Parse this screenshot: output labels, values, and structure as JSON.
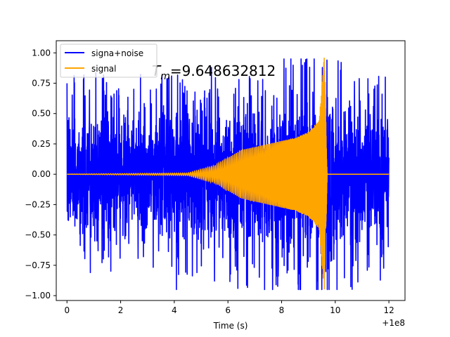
{
  "chart_data": {
    "type": "line",
    "title": "",
    "xlabel": "Time (s)",
    "ylabel": "",
    "x_offset_label": "+1e8",
    "xlim": [
      -0.4,
      12.6
    ],
    "ylim": [
      -1.04,
      1.1
    ],
    "xticks": [
      0,
      2,
      4,
      6,
      8,
      10,
      12
    ],
    "xtick_labels": [
      "0",
      "2",
      "4",
      "6",
      "8",
      "10",
      "12"
    ],
    "yticks": [
      -1.0,
      -0.75,
      -0.5,
      -0.25,
      0.0,
      0.25,
      0.5,
      0.75,
      1.0
    ],
    "ytick_labels": [
      "−1.00",
      "−0.75",
      "−0.50",
      "−0.25",
      "0.00",
      "0.25",
      "0.50",
      "0.75",
      "1.00"
    ],
    "grid": false,
    "legend_position": "top-left",
    "annotation": {
      "prefix": "T",
      "subscript": "m",
      "value": "=9.648632812"
    },
    "series": [
      {
        "name": "signa+noise",
        "color": "#0000ff",
        "x_range": [
          0,
          12
        ],
        "envelope_upper": [
          0.6,
          0.6,
          0.6,
          0.6,
          0.6,
          0.62,
          0.65,
          0.7,
          0.75,
          0.78,
          0.8,
          0.62,
          0.6
        ],
        "envelope_lower": [
          -0.6,
          -0.6,
          -0.6,
          -0.6,
          -0.6,
          -0.62,
          -0.65,
          -0.7,
          -0.72,
          -0.75,
          -0.8,
          -0.62,
          -0.65
        ],
        "description": "noisy oscillation"
      },
      {
        "name": "signal",
        "color": "#ffa500",
        "x_range": [
          0,
          12
        ],
        "merger_time": 9.65,
        "amplitude_at": [
          [
            0,
            0.0
          ],
          [
            4.5,
            0.01
          ],
          [
            5.5,
            0.07
          ],
          [
            6.5,
            0.2
          ],
          [
            7.5,
            0.25
          ],
          [
            8.5,
            0.3
          ],
          [
            9.0,
            0.35
          ],
          [
            9.4,
            0.45
          ],
          [
            9.6,
            1.0
          ],
          [
            9.7,
            0.0
          ],
          [
            12,
            0.0
          ]
        ]
      }
    ]
  }
}
